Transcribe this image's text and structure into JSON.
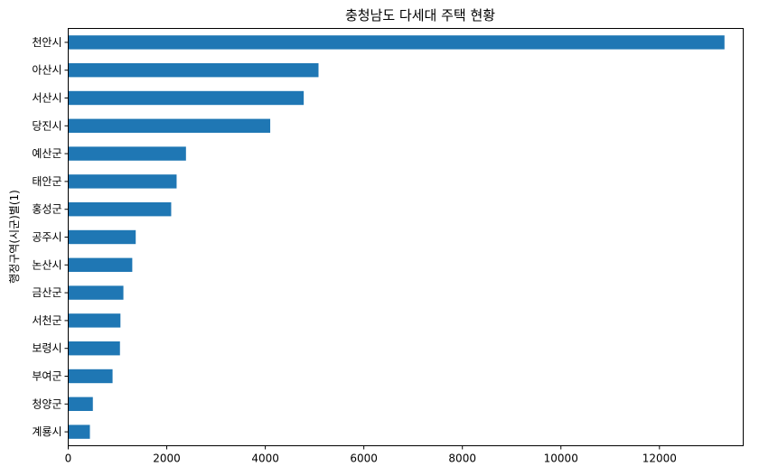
{
  "chart_data": {
    "type": "bar",
    "orientation": "horizontal",
    "title": "충청남도 다세대 주택 현황",
    "xlabel": "",
    "ylabel": "행정구역(시군)별(1)",
    "categories": [
      "천안시",
      "아산시",
      "서산시",
      "당진시",
      "예산군",
      "태안군",
      "홍성군",
      "공주시",
      "논산시",
      "금산군",
      "서천군",
      "보령시",
      "부여군",
      "청양군",
      "계룡시"
    ],
    "values": [
      13320,
      5080,
      4780,
      4100,
      2390,
      2200,
      2090,
      1370,
      1300,
      1120,
      1060,
      1050,
      900,
      500,
      440
    ],
    "xlim": [
      0,
      13700
    ],
    "xticks": [
      0,
      2000,
      4000,
      6000,
      8000,
      10000,
      12000
    ],
    "bar_color": "#1f77b4",
    "grid": false,
    "legend": "none"
  }
}
